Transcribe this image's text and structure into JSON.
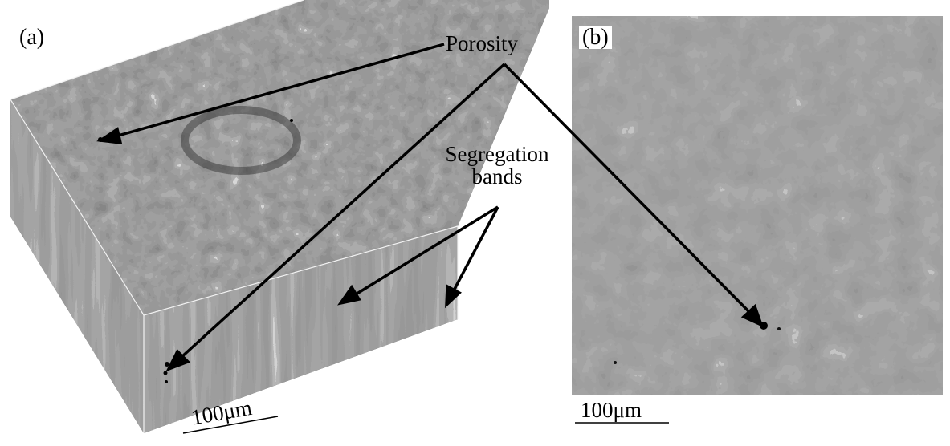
{
  "figure": {
    "panel_a_label": "(a)",
    "panel_b_label": "(b)",
    "annotations": {
      "porosity": "Porosity",
      "segregation": "Segregation\nbands"
    },
    "scale_bars": {
      "panel_a": "100μm",
      "panel_b": "100μm"
    }
  },
  "colors": {
    "background": "#ffffff",
    "micrograph_dark": "#3a3a3a",
    "micrograph_light": "#e6e6e6",
    "arrows": "#000000"
  }
}
